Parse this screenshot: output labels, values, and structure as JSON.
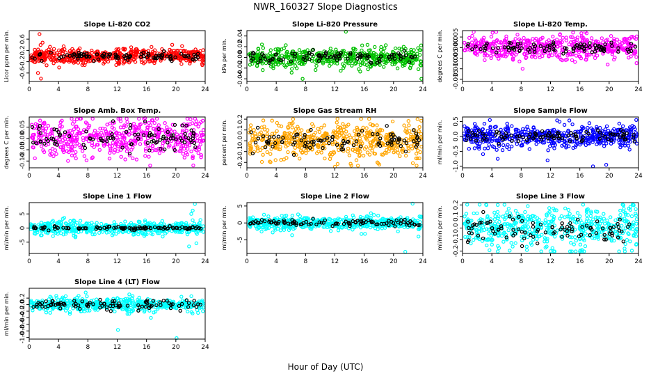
{
  "figure": {
    "title": "NWR_160327  Slope Diagnostics",
    "xlabel": "Hour of Day (UTC)"
  },
  "chart_data": [
    {
      "type": "scatter",
      "title": "Slope Li-820 CO2",
      "ylabel": "Licor ppm per min.",
      "xlim": [
        0,
        24
      ],
      "ylim": [
        -0.9,
        0.9
      ],
      "xticks": [
        0,
        4,
        8,
        12,
        16,
        20,
        24
      ],
      "yticks": [
        -0.6,
        -0.2,
        0.2,
        0.6
      ],
      "yticklabels": [
        "-0.6",
        "-0.2",
        "0.2",
        "0.6"
      ],
      "color": "#ff0000",
      "spread": 0.13,
      "black_spread": 0.08,
      "outliers": [
        [
          1.4,
          0.78
        ],
        [
          1.6,
          -0.8
        ],
        [
          1.2,
          -0.6
        ],
        [
          19.5,
          0.4
        ]
      ],
      "seed": 11
    },
    {
      "type": "scatter",
      "title": "Slope Li-820 Pressure",
      "ylabel": "kPa per min.",
      "xlim": [
        0,
        24
      ],
      "ylim": [
        -0.045,
        0.05
      ],
      "xticks": [
        0,
        4,
        8,
        12,
        16,
        20,
        24
      ],
      "yticks": [
        -0.04,
        -0.02,
        0.0,
        0.02,
        0.04
      ],
      "yticklabels": [
        "-0.04",
        "-0.02",
        "0.00",
        "0.02",
        "0.04"
      ],
      "color": "#00c000",
      "spread": 0.008,
      "black_spread": 0.006,
      "outliers": [
        [
          13.5,
          0.048
        ],
        [
          7.6,
          -0.04
        ],
        [
          23.8,
          -0.04
        ],
        [
          12.8,
          -0.025
        ]
      ],
      "seed": 23
    },
    {
      "type": "scatter",
      "title": "Slope Li-820 Temp.",
      "ylabel": "degrees C per min.",
      "xlim": [
        0,
        24
      ],
      "ylim": [
        -0.016,
        0.008
      ],
      "xticks": [
        0,
        4,
        8,
        12,
        16,
        20,
        24
      ],
      "yticks": [
        -0.015,
        -0.01,
        -0.005,
        0.0,
        0.005
      ],
      "yticklabels": [
        "-0.015",
        "-0.010",
        "-0.005",
        "0.000",
        "0.005"
      ],
      "color": "#ff00ff",
      "spread": 0.0025,
      "black_spread": 0.0015,
      "outliers": [
        [
          4.1,
          0.007
        ],
        [
          8.2,
          -0.01
        ],
        [
          13.6,
          -0.006
        ],
        [
          19.8,
          -0.008
        ]
      ],
      "seed": 37
    },
    {
      "type": "scatter",
      "title": "Slope Amb. Box Temp.",
      "ylabel": "degrees C per min.",
      "xlim": [
        0,
        24
      ],
      "ylim": [
        -0.13,
        0.095
      ],
      "xticks": [
        0,
        4,
        8,
        12,
        16,
        20,
        24
      ],
      "yticks": [
        -0.1,
        -0.05,
        0.0,
        0.05
      ],
      "yticklabels": [
        "-0.10",
        "-0.05",
        "0.00",
        "0.05"
      ],
      "color": "#ff00ff",
      "spread": 0.04,
      "black_spread": 0.025,
      "outliers": [
        [
          16.5,
          -0.12
        ],
        [
          15.8,
          0.09
        ],
        [
          22,
          0.085
        ]
      ],
      "seed": 41
    },
    {
      "type": "scatter",
      "title": "Slope Gas Stream RH",
      "ylabel": "percent per min.",
      "xlim": [
        0,
        24
      ],
      "ylim": [
        -0.25,
        0.22
      ],
      "xticks": [
        0,
        4,
        8,
        12,
        16,
        20,
        24
      ],
      "yticks": [
        -0.2,
        -0.1,
        0.0,
        0.1,
        0.2
      ],
      "yticklabels": [
        "-0.2",
        "-0.1",
        "0.0",
        "0.1",
        "0.2"
      ],
      "color": "#ffa500",
      "spread": 0.08,
      "black_spread": 0.05,
      "outliers": [
        [
          12,
          -0.24
        ],
        [
          6.3,
          0.2
        ],
        [
          17.8,
          -0.2
        ]
      ],
      "seed": 53
    },
    {
      "type": "scatter",
      "title": "Slope Sample Flow",
      "ylabel": "ml/min per min.",
      "xlim": [
        0,
        24
      ],
      "ylim": [
        -1.05,
        0.65
      ],
      "xticks": [
        0,
        4,
        8,
        12,
        16,
        20,
        24
      ],
      "yticks": [
        -1.0,
        -0.5,
        0.0,
        0.5
      ],
      "yticklabels": [
        "-1.0",
        "-0.5",
        "0.0",
        "0.5"
      ],
      "color": "#0000ff",
      "spread": 0.16,
      "black_spread": 0.1,
      "outliers": [
        [
          17.8,
          -1.0
        ],
        [
          19.6,
          -0.95
        ],
        [
          4.8,
          -0.75
        ],
        [
          11.6,
          -0.8
        ],
        [
          23.7,
          0.55
        ]
      ],
      "seed": 67
    },
    {
      "type": "scatter",
      "title": "Slope Line 1 Flow",
      "ylabel": "ml/min per min.",
      "xlim": [
        0,
        24
      ],
      "ylim": [
        -9,
        9
      ],
      "xticks": [
        0,
        4,
        8,
        12,
        16,
        20,
        24
      ],
      "yticks": [
        -5,
        0,
        5
      ],
      "yticklabels": [
        "-5",
        "0",
        "5"
      ],
      "color": "#00ffff",
      "spread": 1.0,
      "black_spread": 0.3,
      "outliers": [
        [
          22.6,
          8.5
        ],
        [
          22.3,
          6.2
        ],
        [
          21.8,
          -6.5
        ],
        [
          22.8,
          -5.4
        ],
        [
          22.1,
          5.0
        ]
      ],
      "seed": 71
    },
    {
      "type": "scatter",
      "title": "Slope Line 2 Flow",
      "ylabel": "ml/min per min.",
      "xlim": [
        0,
        24
      ],
      "ylim": [
        -9,
        6
      ],
      "xticks": [
        0,
        4,
        8,
        12,
        16,
        20,
        24
      ],
      "yticks": [
        -5,
        0,
        5
      ],
      "yticklabels": [
        "-5",
        "0",
        "5"
      ],
      "color": "#00ffff",
      "spread": 0.9,
      "black_spread": 0.5,
      "outliers": [
        [
          22.6,
          5.7
        ],
        [
          21.6,
          -8.5
        ],
        [
          23.4,
          -4.0
        ],
        [
          20.6,
          -2.5
        ]
      ],
      "seed": 83
    },
    {
      "type": "scatter",
      "title": "Slope Line 3 Flow",
      "ylabel": "ml/min per min.",
      "xlim": [
        0,
        24
      ],
      "ylim": [
        -0.22,
        0.22
      ],
      "xticks": [
        0,
        4,
        8,
        12,
        16,
        20,
        24
      ],
      "yticks": [
        -0.2,
        -0.1,
        0.0,
        0.1,
        0.2
      ],
      "yticklabels": [
        "-0.2",
        "-0.1",
        "0.0",
        "0.1",
        "0.2"
      ],
      "color": "#00ffff",
      "spread": 0.09,
      "black_spread": 0.06,
      "outliers": [
        [
          4.8,
          0.2
        ],
        [
          8.9,
          0.19
        ],
        [
          12,
          -0.2
        ],
        [
          16.3,
          -0.19
        ],
        [
          23.3,
          0.2
        ]
      ],
      "seed": 97
    },
    {
      "type": "scatter",
      "title": "Slope Line 4 (LT) Flow",
      "ylabel": "ml/min per min.",
      "xlim": [
        0,
        24
      ],
      "ylim": [
        -1.05,
        0.5
      ],
      "xticks": [
        0,
        4,
        8,
        12,
        16,
        20,
        24
      ],
      "yticks": [
        -1.0,
        -0.8,
        -0.6,
        -0.4,
        -0.2,
        0.0,
        0.2
      ],
      "yticklabels": [
        "-1.0",
        "-0.8",
        "-0.6",
        "-0.4",
        "-0.2",
        "0.0",
        "0.2"
      ],
      "color": "#00ffff",
      "spread": 0.09,
      "black_spread": 0.07,
      "outliers": [
        [
          12.1,
          -0.77
        ],
        [
          20.1,
          -1.02
        ],
        [
          7.7,
          0.37
        ],
        [
          16.6,
          -0.4
        ]
      ],
      "seed": 101
    }
  ]
}
